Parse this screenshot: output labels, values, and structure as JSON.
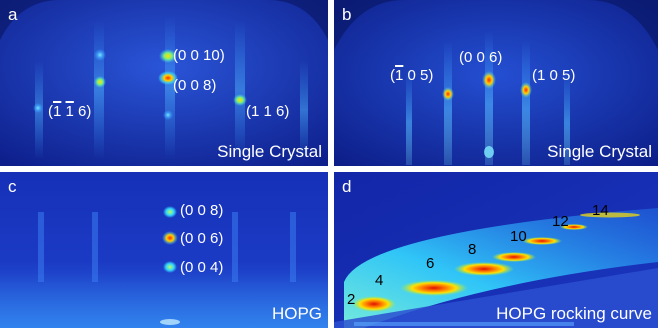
{
  "panels": {
    "a": {
      "label": "a",
      "caption": "Single Crystal",
      "reflections": {
        "r1": [
          "(0 0 10)"
        ],
        "r2": [
          "(0 0 8)"
        ],
        "r3": [
          "(",
          "1",
          " ",
          "1",
          " 6)"
        ],
        "r4": [
          "(1 1 6)"
        ]
      }
    },
    "b": {
      "label": "b",
      "caption": "Single Crystal",
      "reflections": {
        "r1": [
          "(0 0 6)"
        ],
        "r2": [
          "(",
          "1",
          " 0 5)"
        ],
        "r3": [
          "(1 0 5)"
        ]
      }
    },
    "c": {
      "label": "c",
      "caption": "HOPG",
      "reflections": {
        "r1": [
          "(0 0 8)"
        ],
        "r2": [
          "(0 0 6)"
        ],
        "r3": [
          "(0 0 4)"
        ]
      }
    },
    "d": {
      "label": "d",
      "caption": "HOPG rocking curve",
      "orders": [
        "2",
        "4",
        "6",
        "8",
        "10",
        "12",
        "14"
      ]
    }
  },
  "colors": {
    "background": "#1a2fb0",
    "hot": "#ff2a00",
    "warm": "#ffd200",
    "cool": "#33d6ff"
  }
}
